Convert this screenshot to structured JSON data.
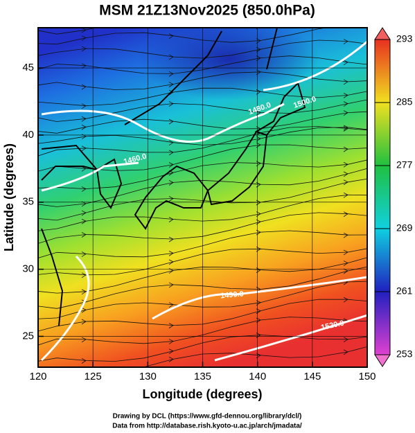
{
  "title": "MSM 21Z13Nov2025 (850.0hPa)",
  "x_axis": {
    "label": "Longitude (degrees)",
    "lim": [
      120,
      150
    ],
    "ticks": [
      120,
      125,
      130,
      135,
      140,
      145,
      150
    ]
  },
  "y_axis": {
    "label": "Latitude  (degrees)",
    "lim": [
      22.7,
      48
    ],
    "ticks": [
      25,
      30,
      35,
      40,
      45
    ]
  },
  "colorbar": {
    "lim": [
      253,
      293
    ],
    "ticks": [
      253,
      261,
      269,
      277,
      285,
      293
    ]
  },
  "contour_labels": [
    "1500.0",
    "1480.0",
    "1460.0",
    "1490.0",
    "1520.0"
  ],
  "footer": [
    "Drawing by DCL (https://www.gfd-dennou.org/library/dcl/)",
    "Data from http://database.rish.kyoto-u.ac.jp/arch/jmadata/"
  ]
}
